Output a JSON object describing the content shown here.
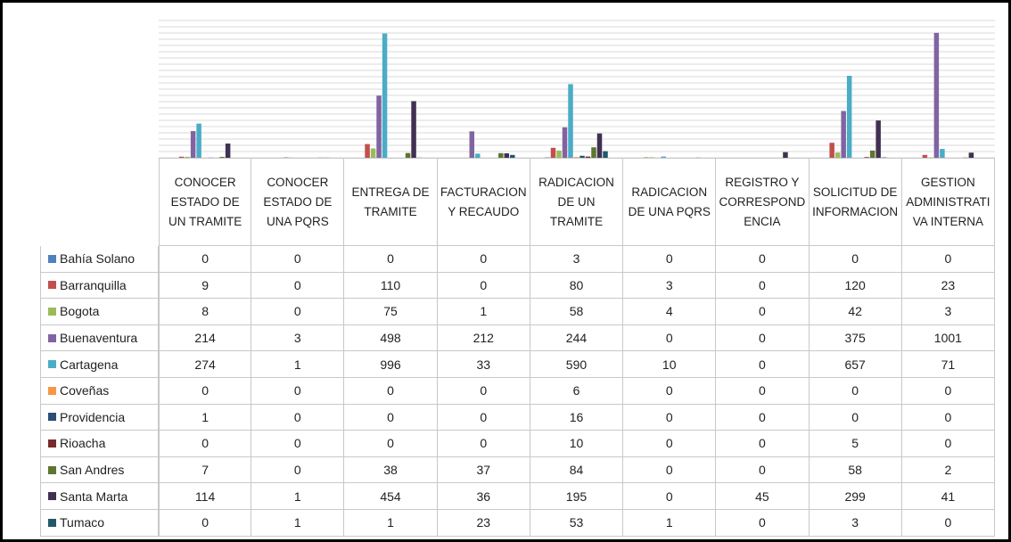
{
  "chart_data": {
    "type": "bar",
    "categories": [
      "CONOCER ESTADO DE UN TRAMITE",
      "CONOCER ESTADO DE UNA PQRS",
      "ENTREGA DE TRAMITE",
      "FACTURACION Y RECAUDO",
      "RADICACION DE UN TRAMITE",
      "RADICACION DE UNA PQRS",
      "REGISTRO Y CORRESPONDENCIA",
      "SOLICITUD DE INFORMACION",
      "GESTION ADMINISTRATIVA INTERNA"
    ],
    "series": [
      {
        "name": "Bahía Solano",
        "color": "#4f81bd",
        "values": [
          0,
          0,
          0,
          0,
          3,
          0,
          0,
          0,
          0
        ]
      },
      {
        "name": "Barranquilla",
        "color": "#c0504d",
        "values": [
          9,
          0,
          110,
          0,
          80,
          3,
          0,
          120,
          23
        ]
      },
      {
        "name": "Bogota",
        "color": "#9bbb59",
        "values": [
          8,
          0,
          75,
          1,
          58,
          4,
          0,
          42,
          3
        ]
      },
      {
        "name": "Buenaventura",
        "color": "#8064a2",
        "values": [
          214,
          3,
          498,
          212,
          244,
          0,
          0,
          375,
          1001
        ]
      },
      {
        "name": "Cartagena",
        "color": "#4bacc6",
        "values": [
          274,
          1,
          996,
          33,
          590,
          10,
          0,
          657,
          71
        ]
      },
      {
        "name": "Coveñas",
        "color": "#f79646",
        "values": [
          0,
          0,
          0,
          0,
          6,
          0,
          0,
          0,
          0
        ]
      },
      {
        "name": "Providencia",
        "color": "#2c4d75",
        "values": [
          1,
          0,
          0,
          0,
          16,
          0,
          0,
          0,
          0
        ]
      },
      {
        "name": "Rioacha",
        "color": "#772c2a",
        "values": [
          0,
          0,
          0,
          0,
          10,
          0,
          0,
          5,
          0
        ]
      },
      {
        "name": "San Andres",
        "color": "#5f7530",
        "values": [
          7,
          0,
          38,
          37,
          84,
          0,
          0,
          58,
          2
        ]
      },
      {
        "name": "Santa Marta",
        "color": "#403152",
        "values": [
          114,
          1,
          454,
          36,
          195,
          0,
          45,
          299,
          41
        ]
      },
      {
        "name": "Tumaco",
        "color": "#215968",
        "values": [
          0,
          1,
          1,
          23,
          53,
          1,
          0,
          3,
          0
        ]
      }
    ],
    "ylim": [
      0,
      1100
    ],
    "yticks": [
      0,
      50,
      100,
      150,
      200,
      250,
      300,
      350,
      400,
      450,
      500,
      550,
      600,
      650,
      700,
      750,
      800,
      850,
      900,
      950,
      1000,
      1050,
      1100
    ],
    "grid": true
  }
}
